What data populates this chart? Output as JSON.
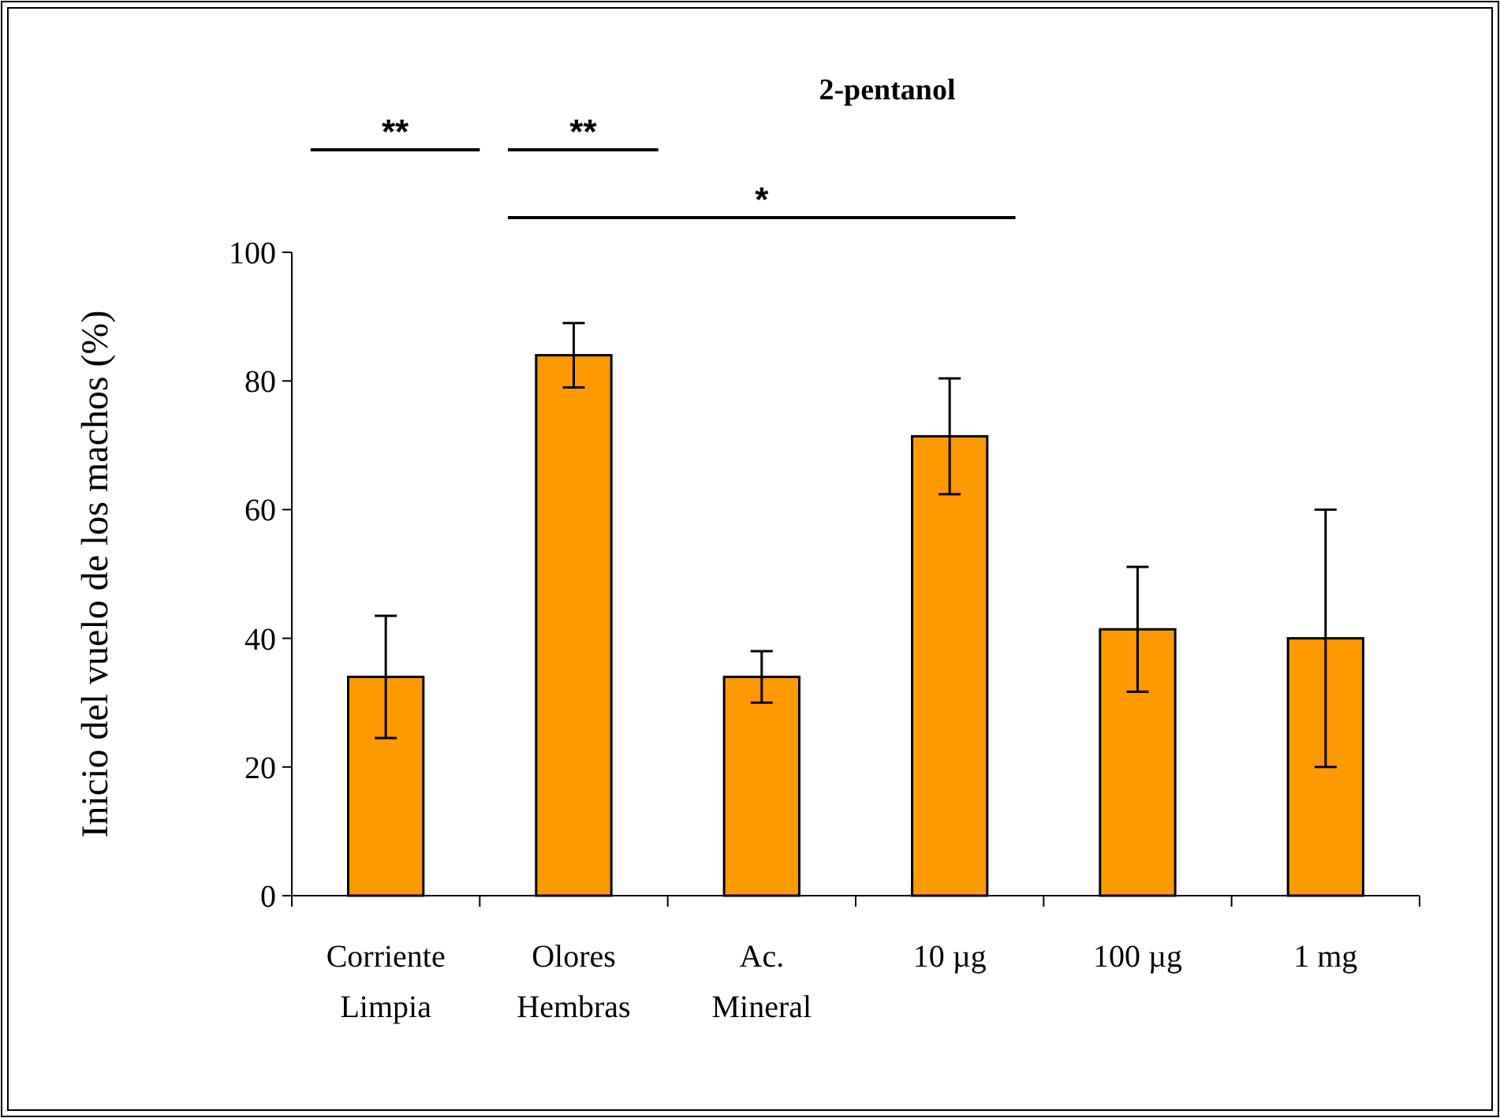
{
  "chart_data": {
    "type": "bar",
    "title": "2-pentanol",
    "ylabel": "Inicio del vuelo de los machos (%)",
    "categories": [
      "Corriente\nLimpia",
      "Olores\nHembras",
      "Ac.\nMineral",
      "10  µg",
      "100 µg",
      "1 mg"
    ],
    "values": [
      34,
      84,
      34,
      71.4,
      41.4,
      40
    ],
    "errors": [
      9.5,
      5,
      4,
      9,
      9.7,
      20
    ],
    "color": "#ff9900",
    "ylim": [
      0,
      100
    ],
    "yticks": [
      0,
      20,
      40,
      60,
      80,
      100
    ],
    "annotations": [
      "**",
      "**",
      "*"
    ]
  }
}
